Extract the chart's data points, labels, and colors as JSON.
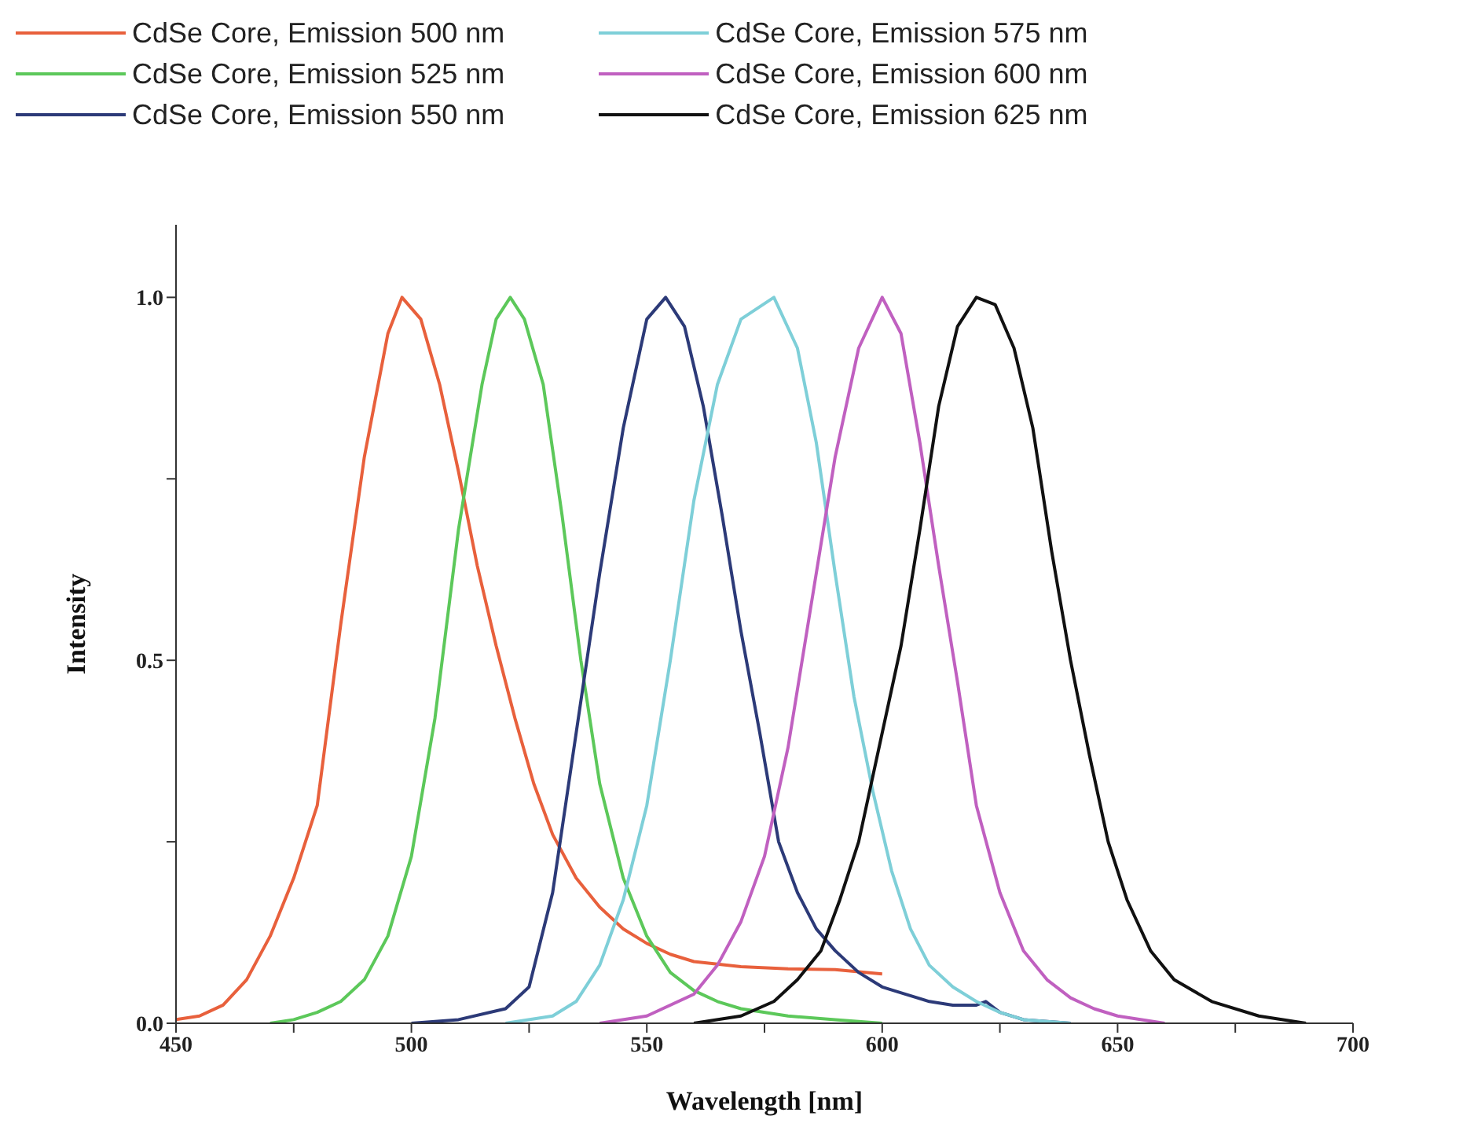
{
  "chart_data": {
    "type": "line",
    "xlabel": "Wavelength [nm]",
    "ylabel": "Intensity",
    "xlim": [
      450,
      700
    ],
    "ylim": [
      0,
      1.1
    ],
    "xticks": [
      450,
      {
        "value": 475,
        "label": null
      },
      500,
      {
        "value": 525,
        "label": null
      },
      550,
      {
        "value": 575,
        "label": null
      },
      600,
      {
        "value": 625,
        "label": null
      },
      650,
      {
        "value": 675,
        "label": null
      },
      700
    ],
    "yticks": [
      {
        "value": 0,
        "label": "0.0"
      },
      {
        "value": 0.25,
        "label": null
      },
      {
        "value": 0.5,
        "label": "0.5"
      },
      {
        "value": 0.75,
        "label": null
      },
      {
        "value": 1,
        "label": "1.0"
      }
    ],
    "grid": false,
    "legend": "top",
    "marker": "none",
    "line_style": "solid",
    "series": [
      {
        "name": "CdSe Core, Emission 500 nm",
        "color": "#e8603c",
        "x": [
          450,
          455,
          460,
          465,
          470,
          475,
          480,
          485,
          490,
          495,
          498,
          502,
          506,
          510,
          514,
          518,
          522,
          526,
          530,
          535,
          540,
          545,
          550,
          555,
          560,
          570,
          580,
          590,
          600
        ],
        "values": [
          0.005,
          0.01,
          0.025,
          0.06,
          0.12,
          0.2,
          0.3,
          0.55,
          0.78,
          0.95,
          1.0,
          0.97,
          0.88,
          0.76,
          0.63,
          0.52,
          0.42,
          0.33,
          0.26,
          0.2,
          0.16,
          0.13,
          0.11,
          0.095,
          0.085,
          0.078,
          0.075,
          0.074,
          0.068
        ]
      },
      {
        "name": "CdSe Core, Emission 525 nm",
        "color": "#5cc85a",
        "x": [
          470,
          475,
          480,
          485,
          490,
          495,
          500,
          505,
          510,
          515,
          518,
          521,
          524,
          528,
          532,
          536,
          540,
          545,
          550,
          555,
          560,
          565,
          570,
          580,
          590,
          600
        ],
        "values": [
          0,
          0.005,
          0.015,
          0.03,
          0.06,
          0.12,
          0.23,
          0.42,
          0.68,
          0.88,
          0.97,
          1.0,
          0.97,
          0.88,
          0.7,
          0.5,
          0.33,
          0.2,
          0.12,
          0.07,
          0.045,
          0.03,
          0.02,
          0.01,
          0.005,
          0
        ]
      },
      {
        "name": "CdSe Core, Emission 550 nm",
        "color": "#2c3a78",
        "x": [
          500,
          510,
          520,
          525,
          530,
          535,
          540,
          545,
          550,
          554,
          558,
          562,
          566,
          570,
          574,
          578,
          582,
          586,
          590,
          595,
          600,
          605,
          610,
          615,
          620,
          622,
          625,
          630,
          640
        ],
        "values": [
          0,
          0.005,
          0.02,
          0.05,
          0.18,
          0.4,
          0.62,
          0.82,
          0.97,
          1.0,
          0.96,
          0.85,
          0.7,
          0.54,
          0.4,
          0.25,
          0.18,
          0.13,
          0.1,
          0.07,
          0.05,
          0.04,
          0.03,
          0.025,
          0.025,
          0.03,
          0.015,
          0.005,
          0
        ]
      },
      {
        "name": "CdSe Core, Emission 575 nm",
        "color": "#7ecfd8",
        "x": [
          520,
          530,
          535,
          540,
          545,
          550,
          555,
          560,
          565,
          570,
          577,
          582,
          586,
          590,
          594,
          598,
          602,
          606,
          610,
          615,
          620,
          625,
          630,
          640
        ],
        "values": [
          0,
          0.01,
          0.03,
          0.08,
          0.17,
          0.3,
          0.5,
          0.72,
          0.88,
          0.97,
          1.0,
          0.93,
          0.8,
          0.62,
          0.45,
          0.32,
          0.21,
          0.13,
          0.08,
          0.05,
          0.03,
          0.015,
          0.005,
          0
        ]
      },
      {
        "name": "CdSe Core, Emission 600 nm",
        "color": "#c060c0",
        "x": [
          540,
          550,
          560,
          565,
          570,
          575,
          580,
          585,
          590,
          595,
          600,
          604,
          608,
          612,
          616,
          620,
          625,
          630,
          635,
          640,
          645,
          650,
          660
        ],
        "values": [
          0,
          0.01,
          0.04,
          0.08,
          0.14,
          0.23,
          0.38,
          0.58,
          0.78,
          0.93,
          1.0,
          0.95,
          0.8,
          0.63,
          0.47,
          0.3,
          0.18,
          0.1,
          0.06,
          0.035,
          0.02,
          0.01,
          0
        ]
      },
      {
        "name": "CdSe Core, Emission 625 nm",
        "color": "#111111",
        "x": [
          560,
          570,
          577,
          582,
          587,
          591,
          595,
          600,
          604,
          608,
          612,
          616,
          620,
          624,
          628,
          632,
          636,
          640,
          644,
          648,
          652,
          657,
          662,
          670,
          680,
          690
        ],
        "values": [
          0,
          0.01,
          0.03,
          0.06,
          0.1,
          0.17,
          0.25,
          0.4,
          0.52,
          0.68,
          0.85,
          0.96,
          1.0,
          0.99,
          0.93,
          0.82,
          0.65,
          0.5,
          0.37,
          0.25,
          0.17,
          0.1,
          0.06,
          0.03,
          0.01,
          0
        ]
      }
    ]
  }
}
